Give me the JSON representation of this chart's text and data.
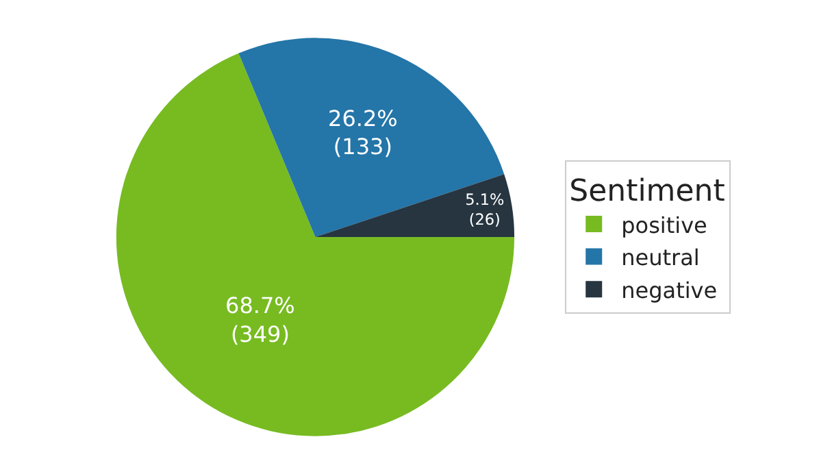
{
  "chart_data": {
    "type": "pie",
    "legend_title": "Sentiment",
    "legend": "right",
    "categories": [
      "positive",
      "neutral",
      "negative"
    ],
    "values": [
      349,
      133,
      26
    ],
    "value_labels": [
      "68.7%\n(349)",
      "26.2%\n(133)",
      "5.1%\n(26)"
    ],
    "colors": [
      "#77bb21",
      "#2475a8",
      "#263540"
    ]
  }
}
